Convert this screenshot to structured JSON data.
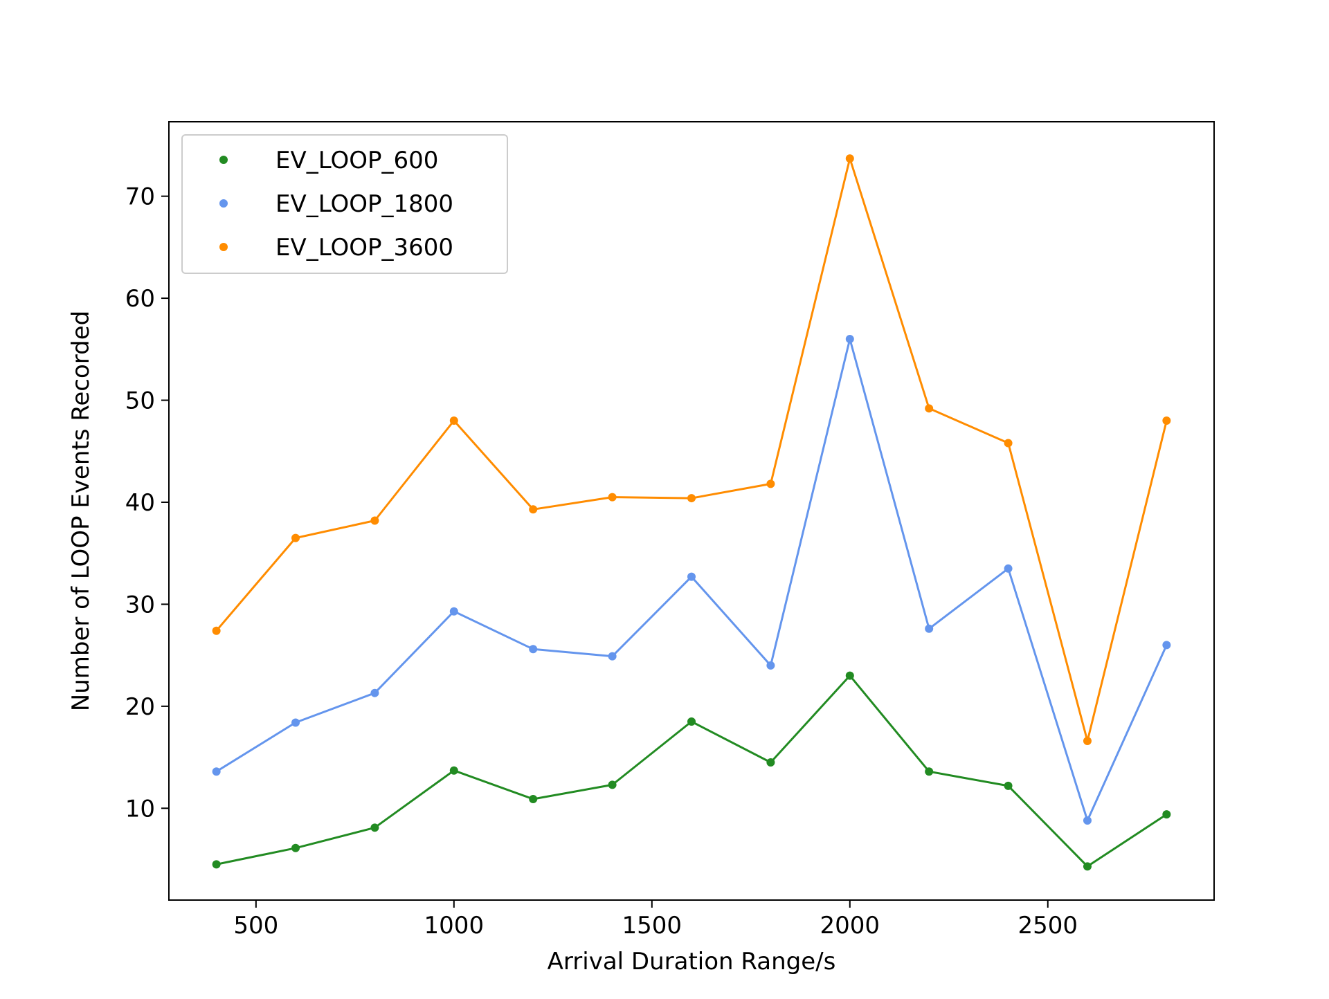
{
  "chart_data": {
    "type": "line",
    "title": "",
    "xlabel": "Arrival Duration Range/s",
    "ylabel": "Number of LOOP Events Recorded",
    "xlim": [
      280,
      2920
    ],
    "ylim": [
      1,
      77.3
    ],
    "x_ticks": [
      500,
      1000,
      1500,
      2000,
      2500
    ],
    "y_ticks": [
      10,
      20,
      30,
      40,
      50,
      60,
      70
    ],
    "grid": false,
    "legend_position": "top-left",
    "x": [
      400,
      600,
      800,
      1000,
      1200,
      1400,
      1600,
      1800,
      2000,
      2200,
      2400,
      2600,
      2800
    ],
    "series": [
      {
        "name": "EV_LOOP_600",
        "color": "#228B22",
        "values": [
          4.5,
          6.1,
          8.1,
          13.7,
          10.9,
          12.3,
          18.5,
          14.5,
          23.0,
          13.6,
          12.2,
          4.3,
          9.4
        ]
      },
      {
        "name": "EV_LOOP_1800",
        "color": "#6495ED",
        "values": [
          13.6,
          18.4,
          21.3,
          29.3,
          25.6,
          24.9,
          32.7,
          24.0,
          56.0,
          27.6,
          33.5,
          8.8,
          26.0
        ]
      },
      {
        "name": "EV_LOOP_3600",
        "color": "#FF8C00",
        "values": [
          27.4,
          36.5,
          38.2,
          48.0,
          39.3,
          40.5,
          40.4,
          41.8,
          73.7,
          49.2,
          45.8,
          16.6,
          48.0
        ]
      }
    ]
  }
}
